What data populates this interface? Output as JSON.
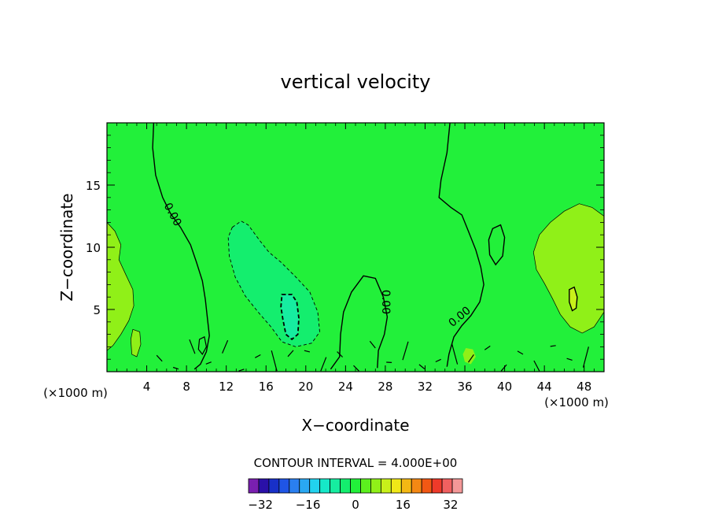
{
  "chart_data": {
    "type": "heatmap",
    "title": "vertical velocity",
    "xlabel": "X−coordinate",
    "ylabel": "Z−coordinate",
    "x_unit_left": "(×1000 m)",
    "x_unit_right": "(×1000 m)",
    "xlim": [
      0,
      50
    ],
    "ylim": [
      0,
      20
    ],
    "x_ticks": [
      4,
      8,
      12,
      16,
      20,
      24,
      28,
      32,
      36,
      40,
      44,
      48
    ],
    "y_ticks": [
      5,
      10,
      15
    ],
    "contour_interval_label": "CONTOUR INTERVAL = 4.000E+00",
    "contour_interval": 4.0,
    "zero_contour_label": "0.00",
    "colorbar": {
      "min": -36,
      "max": 36,
      "tick_values": [
        -32,
        -16,
        0,
        16,
        32
      ],
      "tick_labels": [
        "−32",
        "−16",
        "0",
        "16",
        "32"
      ],
      "colors": [
        "#7a1fb0",
        "#2a10a8",
        "#1830c8",
        "#1f55e6",
        "#2a7ff0",
        "#2aa8f2",
        "#22d2ee",
        "#16e8c8",
        "#16eda0",
        "#14ee6e",
        "#22f03a",
        "#5cf01e",
        "#90f018",
        "#c8f01a",
        "#f0e818",
        "#f4b814",
        "#f48814",
        "#f25814",
        "#ee3a2a",
        "#f06060",
        "#f49898"
      ]
    },
    "background_level_color": "#22f03a",
    "regions": [
      {
        "sign": "negative",
        "level": -4,
        "x_range": [
          12.5,
          21.5
        ],
        "z_range": [
          2.0,
          12.0
        ]
      },
      {
        "sign": "negative",
        "level": -8,
        "x_range": [
          17.5,
          19.5
        ],
        "z_range": [
          2.5,
          6.3
        ]
      },
      {
        "sign": "positive",
        "level": 4,
        "x_range": [
          43,
          50
        ],
        "z_range": [
          3.0,
          13.5
        ]
      },
      {
        "sign": "positive",
        "level": 4,
        "x_range": [
          0,
          3
        ],
        "z_range": [
          1.5,
          12.0
        ]
      },
      {
        "sign": "positive",
        "level": 8,
        "x_range": [
          46.5,
          47.3
        ],
        "z_range": [
          5.0,
          6.8
        ]
      }
    ]
  }
}
